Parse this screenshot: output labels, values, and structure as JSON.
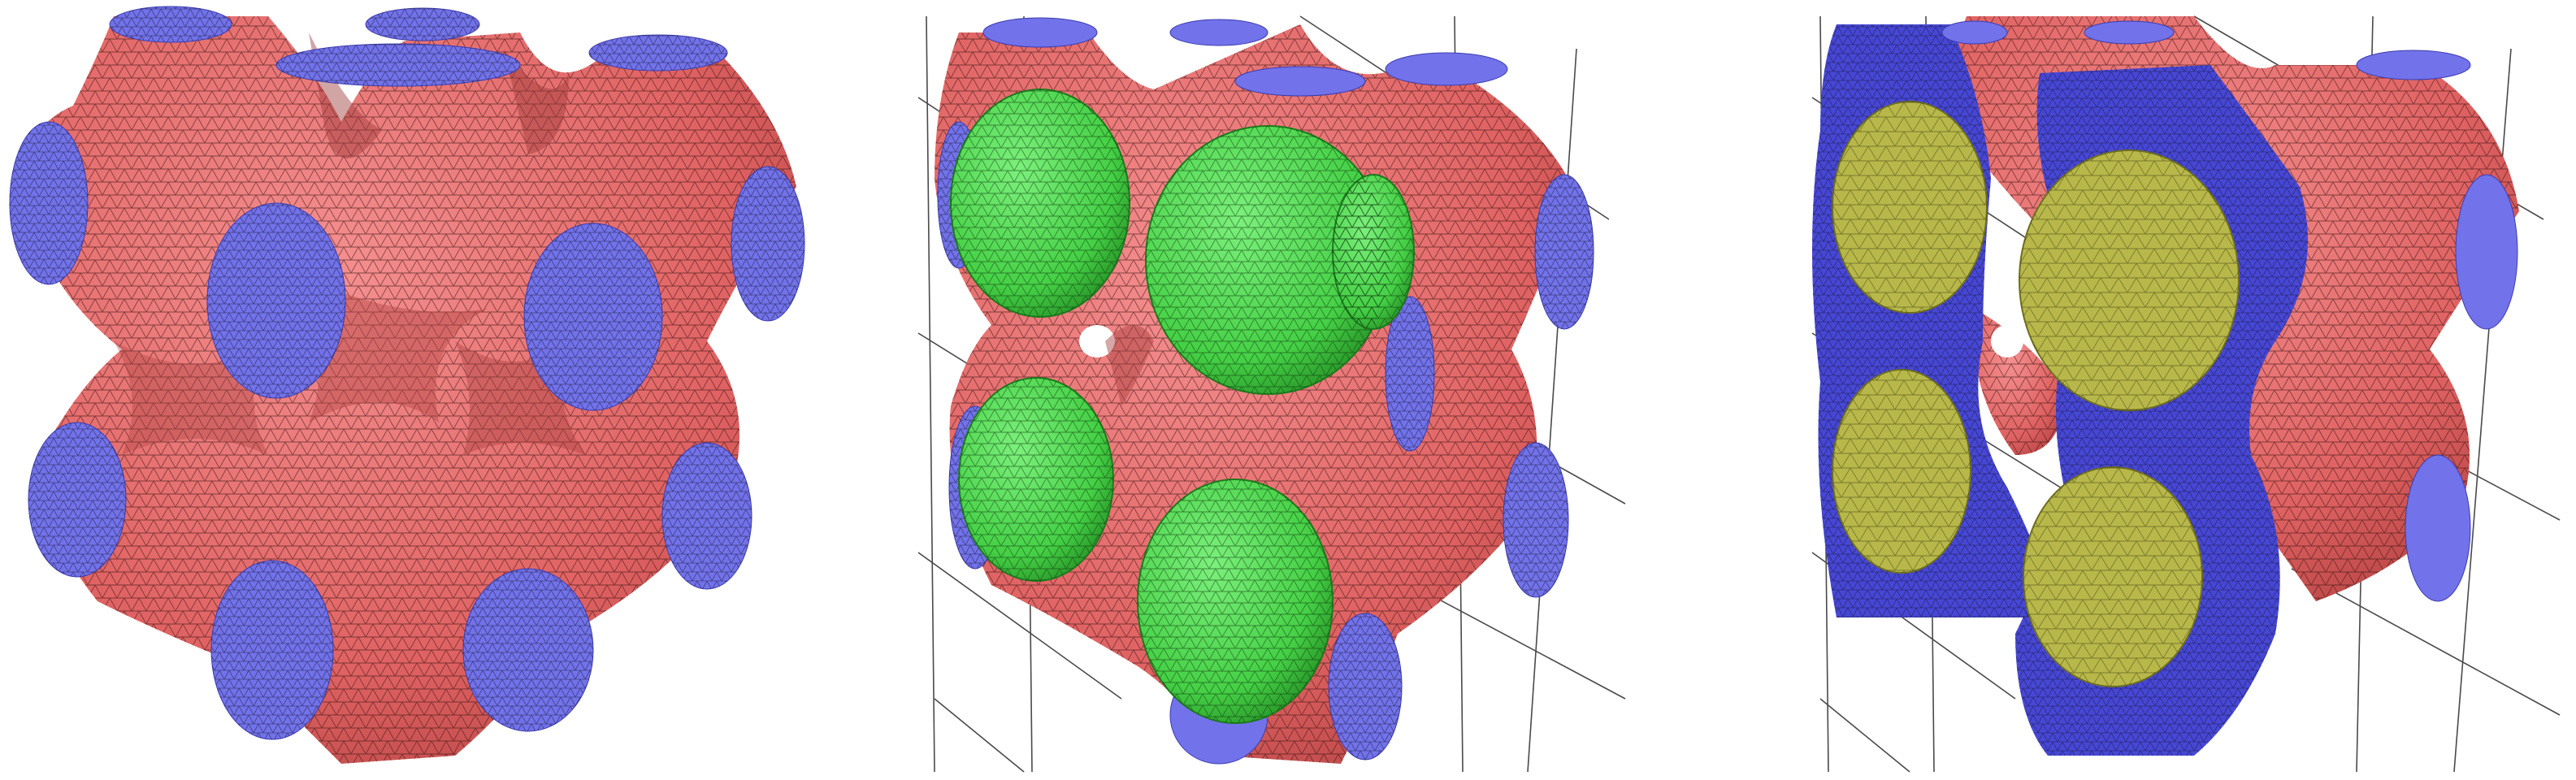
{
  "figure": {
    "panels": [
      {
        "id": "a",
        "description_colors": {
          "surface": "#e86a6a",
          "cut_faces": "#6f6fe6",
          "mesh_lines": "#2a1010"
        }
      },
      {
        "id": "b",
        "description_colors": {
          "surface": "#e86a6a",
          "cut_faces": "#6f6fe6",
          "inclusions": "#49e04a",
          "mesh_lines": "#2a1010",
          "grid_lines": "#444444"
        }
      },
      {
        "id": "c",
        "description_colors": {
          "surface": "#e86a6a",
          "cut_faces": "#4a4ad8",
          "inclusion_sections": "#b9b94a",
          "mesh_lines": "#2a1010",
          "grid_lines": "#444444"
        }
      }
    ]
  }
}
